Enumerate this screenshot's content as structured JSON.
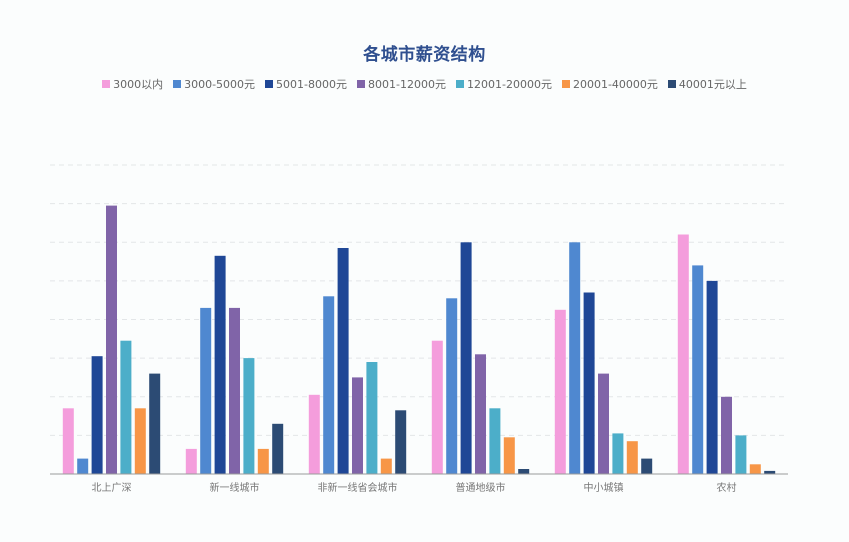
{
  "chart_data": {
    "type": "bar",
    "title": "各城市薪资结构",
    "legend_position": "top-center",
    "grid": true,
    "ylim": [
      0,
      80
    ],
    "categories": [
      "北上广深",
      "新一线城市",
      "非新一线省会城市",
      "普通地级市",
      "中小城镇",
      "农村"
    ],
    "series": [
      {
        "name": "3000以内",
        "color": "#f49ddc",
        "values": [
          17,
          6.5,
          20.5,
          34.5,
          42.5,
          62
        ]
      },
      {
        "name": "3000-5000元",
        "color": "#4f88d0",
        "values": [
          4,
          43,
          46,
          45.5,
          60,
          54
        ]
      },
      {
        "name": "5001-8000元",
        "color": "#1f4796",
        "values": [
          30.5,
          56.5,
          58.5,
          60,
          47,
          50
        ]
      },
      {
        "name": "8001-12000元",
        "color": "#8064a8",
        "values": [
          69.5,
          43,
          25,
          31,
          26,
          20
        ]
      },
      {
        "name": "12001-20000元",
        "color": "#4caec9",
        "values": [
          34.5,
          30,
          29,
          17,
          10.5,
          10
        ]
      },
      {
        "name": "20001-40000元",
        "color": "#f79647",
        "values": [
          17,
          6.5,
          4,
          9.5,
          8.5,
          2.5
        ]
      },
      {
        "name": "40001元以上",
        "color": "#2c4b74",
        "values": [
          26,
          13,
          16.5,
          1.3,
          4,
          0.8
        ]
      }
    ]
  }
}
